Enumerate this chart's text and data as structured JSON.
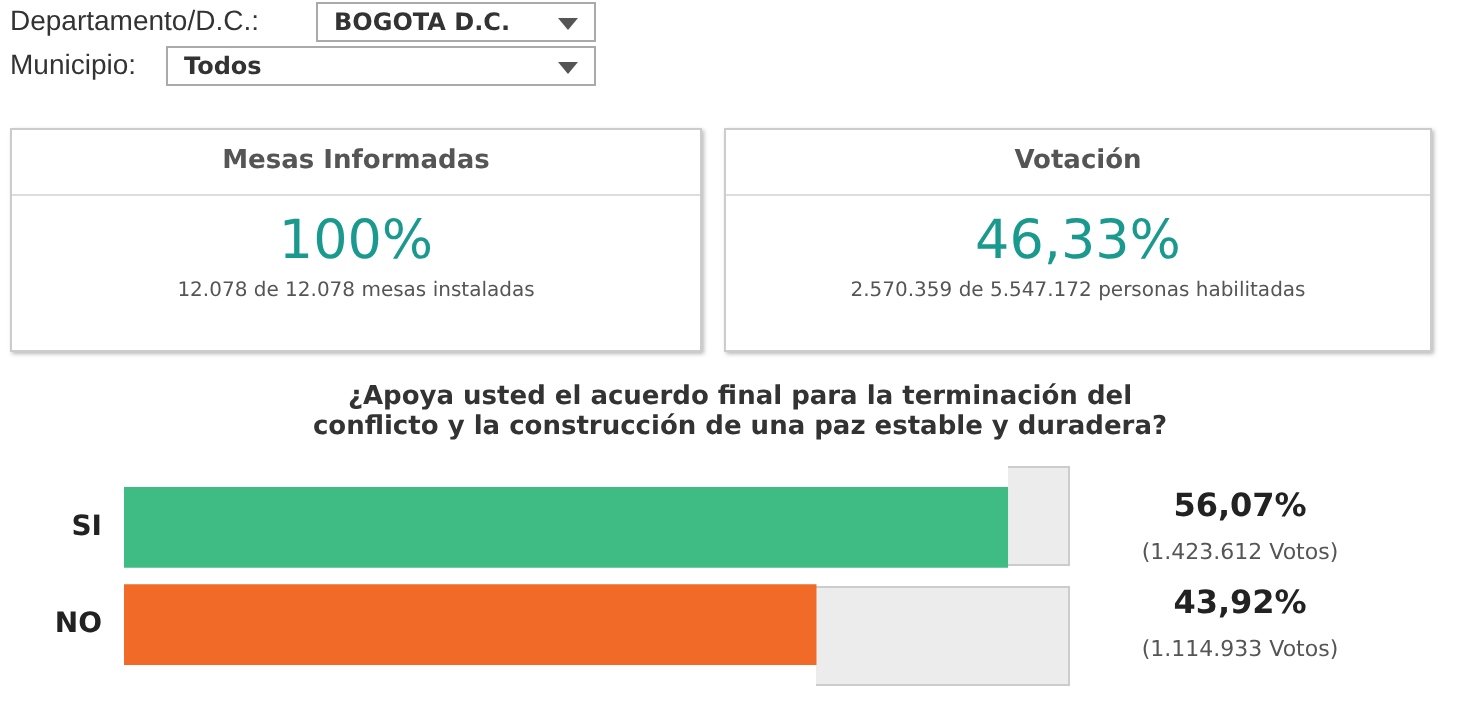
{
  "chart_data": [
    {
      "type": "other",
      "annotations": [
        "Departamento/D.C.:",
        "BOGOTA D.C.",
        "Municipio:",
        "Todos",
        "Mesas Informadas",
        "100%",
        "12.078 de 12.078 mesas instaladas",
        "Votación",
        "46,33%",
        "2.570.359 de 5.547.172 personas habilitadas"
      ]
    },
    {
      "type": "bar",
      "orientation": "horizontal",
      "title": "¿Apoya usted el acuerdo final para la terminación del conflicto y la construcción de una paz estable y duradera?",
      "categories": [
        "SI",
        "NO"
      ],
      "values": [
        56.07,
        43.92
      ],
      "colors": [
        "#3fbb84",
        "#f26a28"
      ],
      "value_labels": [
        "56,07%",
        "43,92%"
      ],
      "annotations": [
        "(1.423.612 Votos)",
        "(1.114.933 Votos)"
      ],
      "grid": false,
      "legend": false
    }
  ]
}
